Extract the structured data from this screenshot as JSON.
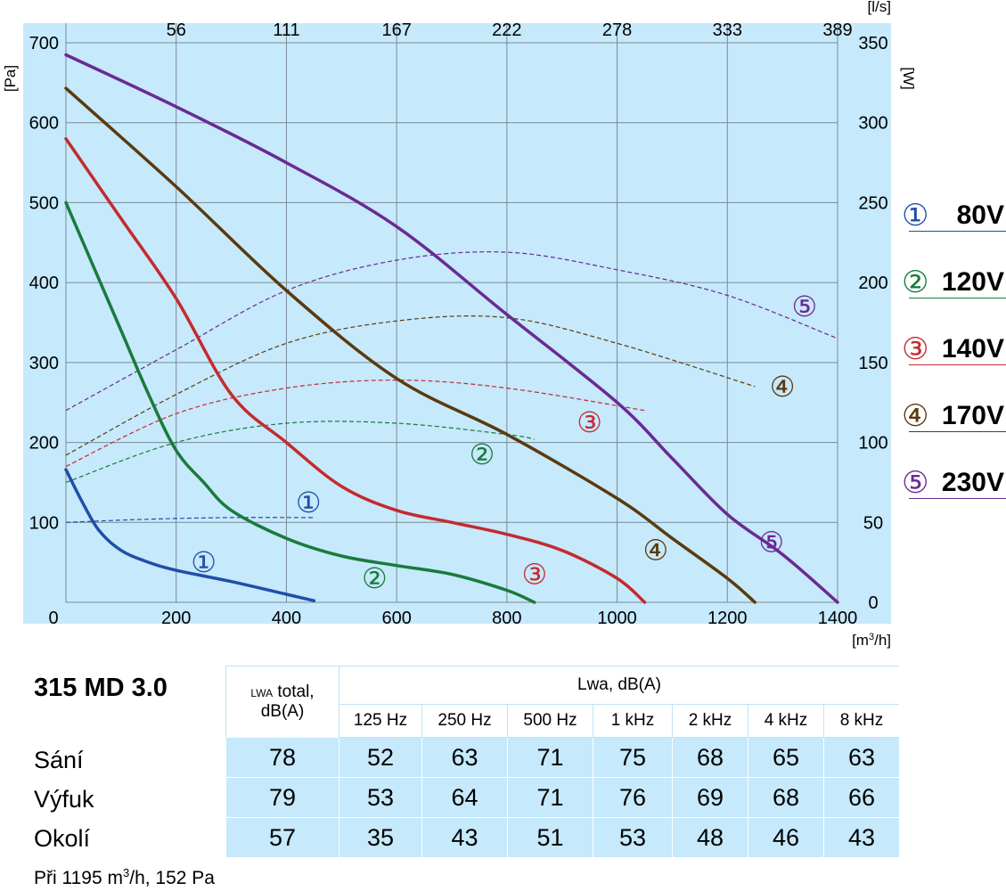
{
  "chart_data": {
    "type": "line",
    "x_axis": {
      "label": "[m³/h]",
      "range": [
        0,
        1400
      ],
      "ticks": [
        0,
        200,
        400,
        600,
        800,
        1000,
        1200,
        1400
      ]
    },
    "x2_axis": {
      "label": "[l/s]",
      "ticks": [
        56,
        111,
        167,
        222,
        278,
        333,
        389
      ]
    },
    "y_axis": {
      "label": "[Pa]",
      "range": [
        0,
        700
      ],
      "ticks": [
        100,
        200,
        300,
        400,
        500,
        600,
        700
      ]
    },
    "y2_axis": {
      "label": "[W]",
      "range": [
        0,
        350
      ],
      "ticks": [
        0,
        50,
        100,
        150,
        200,
        250,
        300,
        350
      ]
    },
    "grid": true,
    "colors": {
      "background": "#c6e9fb",
      "grid": "#7a8a96"
    },
    "pressure_series": [
      {
        "name": "①",
        "color": "#1f4fa8",
        "points": [
          [
            0,
            166
          ],
          [
            30,
            125
          ],
          [
            60,
            90
          ],
          [
            100,
            65
          ],
          [
            150,
            50
          ],
          [
            200,
            40
          ],
          [
            300,
            26
          ],
          [
            400,
            10
          ],
          [
            450,
            2
          ]
        ]
      },
      {
        "name": "②",
        "color": "#1a7a3c",
        "points": [
          [
            0,
            500
          ],
          [
            50,
            420
          ],
          [
            100,
            340
          ],
          [
            150,
            260
          ],
          [
            200,
            190
          ],
          [
            250,
            150
          ],
          [
            300,
            115
          ],
          [
            400,
            80
          ],
          [
            500,
            58
          ],
          [
            600,
            46
          ],
          [
            700,
            35
          ],
          [
            800,
            15
          ],
          [
            850,
            0
          ]
        ]
      },
      {
        "name": "③",
        "color": "#c42a2f",
        "points": [
          [
            0,
            580
          ],
          [
            100,
            480
          ],
          [
            200,
            380
          ],
          [
            300,
            260
          ],
          [
            400,
            200
          ],
          [
            500,
            145
          ],
          [
            600,
            115
          ],
          [
            700,
            100
          ],
          [
            800,
            85
          ],
          [
            900,
            65
          ],
          [
            1000,
            30
          ],
          [
            1050,
            0
          ]
        ]
      },
      {
        "name": "④",
        "color": "#5a3a0e",
        "points": [
          [
            0,
            643
          ],
          [
            200,
            520
          ],
          [
            400,
            390
          ],
          [
            600,
            280
          ],
          [
            800,
            210
          ],
          [
            1000,
            130
          ],
          [
            1100,
            80
          ],
          [
            1200,
            30
          ],
          [
            1250,
            0
          ]
        ]
      },
      {
        "name": "⑤",
        "color": "#6a2a92",
        "points": [
          [
            0,
            685
          ],
          [
            200,
            620
          ],
          [
            400,
            550
          ],
          [
            600,
            470
          ],
          [
            800,
            360
          ],
          [
            1000,
            250
          ],
          [
            1100,
            180
          ],
          [
            1200,
            110
          ],
          [
            1300,
            60
          ],
          [
            1400,
            0
          ]
        ]
      }
    ],
    "power_series": [
      {
        "name": "①",
        "color": "#1f4fa8",
        "points": [
          [
            0,
            50
          ],
          [
            150,
            52
          ],
          [
            300,
            53
          ],
          [
            450,
            53
          ]
        ]
      },
      {
        "name": "②",
        "color": "#1a7a3c",
        "points": [
          [
            0,
            75
          ],
          [
            200,
            100
          ],
          [
            400,
            112
          ],
          [
            600,
            112
          ],
          [
            800,
            105
          ],
          [
            850,
            102
          ]
        ]
      },
      {
        "name": "③",
        "color": "#c42a2f",
        "points": [
          [
            0,
            85
          ],
          [
            200,
            118
          ],
          [
            400,
            134
          ],
          [
            600,
            139
          ],
          [
            800,
            134
          ],
          [
            1050,
            120
          ]
        ]
      },
      {
        "name": "④",
        "color": "#5a3a0e",
        "points": [
          [
            0,
            92
          ],
          [
            200,
            130
          ],
          [
            400,
            162
          ],
          [
            600,
            176
          ],
          [
            800,
            178
          ],
          [
            1000,
            162
          ],
          [
            1250,
            135
          ]
        ]
      },
      {
        "name": "⑤",
        "color": "#6a2a92",
        "points": [
          [
            0,
            120
          ],
          [
            200,
            158
          ],
          [
            400,
            195
          ],
          [
            600,
            214
          ],
          [
            800,
            219
          ],
          [
            1000,
            208
          ],
          [
            1200,
            192
          ],
          [
            1400,
            165
          ]
        ]
      }
    ],
    "curve_labels": [
      {
        "text": "①",
        "color": "#1f4fa8",
        "x": 250,
        "y": 50
      },
      {
        "text": "①",
        "color": "#1f4fa8",
        "x": 440,
        "y": 125
      },
      {
        "text": "②",
        "color": "#1a7a3c",
        "x": 560,
        "y": 30
      },
      {
        "text": "②",
        "color": "#1a7a3c",
        "x": 755,
        "y": 185
      },
      {
        "text": "③",
        "color": "#c42a2f",
        "x": 850,
        "y": 35
      },
      {
        "text": "③",
        "color": "#c42a2f",
        "x": 950,
        "y": 225
      },
      {
        "text": "④",
        "color": "#5a3a0e",
        "x": 1070,
        "y": 65
      },
      {
        "text": "④",
        "color": "#5a3a0e",
        "x": 1300,
        "y": 270
      },
      {
        "text": "⑤",
        "color": "#6a2a92",
        "x": 1280,
        "y": 75
      },
      {
        "text": "⑤",
        "color": "#6a2a92",
        "x": 1340,
        "y": 370
      }
    ]
  },
  "legend": [
    {
      "num": "①",
      "volt": "80V",
      "color": "#1f4fa8"
    },
    {
      "num": "②",
      "volt": "120V",
      "color": "#1a7a3c"
    },
    {
      "num": "③",
      "volt": "140V",
      "color": "#c42a2f"
    },
    {
      "num": "④",
      "volt": "170V",
      "color": "#5a3a0e"
    },
    {
      "num": "⑤",
      "volt": "230V",
      "color": "#6a2a92"
    }
  ],
  "model": "315 MD 3.0",
  "noise_table": {
    "total_header_a": "LWA",
    "total_header_b": " total,",
    "total_header_c": "dB(A)",
    "group_header": "Lwa, dB(A)",
    "bands": [
      "125 Hz",
      "250 Hz",
      "500 Hz",
      "1 kHz",
      "2 kHz",
      "4 kHz",
      "8 kHz"
    ],
    "rows": [
      {
        "label": "Sání",
        "values": [
          "78",
          "52",
          "63",
          "71",
          "75",
          "68",
          "65",
          "63"
        ]
      },
      {
        "label": "Výfuk",
        "values": [
          "79",
          "53",
          "64",
          "71",
          "76",
          "69",
          "68",
          "66"
        ]
      },
      {
        "label": "Okolí",
        "values": [
          "57",
          "35",
          "43",
          "51",
          "53",
          "48",
          "46",
          "43"
        ]
      }
    ]
  },
  "footnote": {
    "pre": "Při 1195 m",
    "sup": "3",
    "post": "/h, 152 Pa"
  }
}
